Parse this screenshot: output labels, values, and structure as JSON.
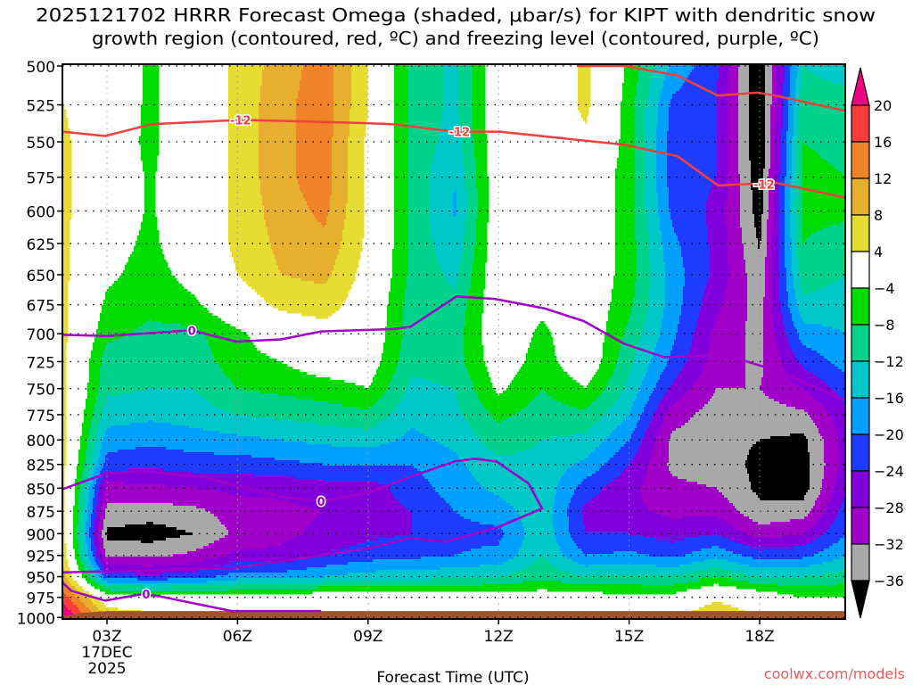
{
  "chart_data": {
    "type": "heatmap",
    "title_lines": [
      "2025121702 HRRR Forecast Omega (shaded, μbar/s) for KIPT with dendritic snow",
      "growth region (contoured, red, ºC) and freezing level (contoured, purple, ºC)"
    ],
    "xlabel": "Forecast Time (UTC)",
    "x_unit": "hours since 00Z 17DEC2025",
    "xlim": [
      2,
      20
    ],
    "x_ticks": [
      {
        "t": 3,
        "label": "03Z",
        "sub": [
          "17DEC",
          "2025"
        ]
      },
      {
        "t": 6,
        "label": "06Z"
      },
      {
        "t": 9,
        "label": "09Z"
      },
      {
        "t": 12,
        "label": "12Z"
      },
      {
        "t": 15,
        "label": "15Z"
      },
      {
        "t": 18,
        "label": "18Z"
      }
    ],
    "ylabel": "Pressure (hPa)",
    "ylim": [
      500,
      1000
    ],
    "y_scale": "log",
    "y_ticks": [
      "500",
      "525",
      "550",
      "575",
      "600",
      "625",
      "650",
      "675",
      "700",
      "725",
      "750",
      "775",
      "800",
      "825",
      "850",
      "875",
      "900",
      "925",
      "950",
      "975",
      "1000"
    ],
    "grid": true,
    "omega_times": [
      2,
      3,
      4,
      5,
      6,
      7,
      8,
      9,
      10,
      11,
      12,
      13,
      14,
      15,
      16,
      17,
      18,
      19,
      20
    ],
    "omega_pressures": [
      500,
      525,
      550,
      575,
      600,
      625,
      650,
      675,
      700,
      725,
      750,
      775,
      800,
      825,
      850,
      875,
      900,
      925,
      950,
      975,
      1000
    ],
    "omega_by_time": [
      [
        2,
        4,
        5,
        5,
        5,
        5,
        5,
        5,
        5,
        5,
        5,
        5,
        5,
        5,
        5,
        5,
        5,
        6,
        10,
        18,
        25
      ],
      [
        0,
        0,
        -1,
        -1,
        -1,
        -2,
        -3,
        -5,
        -7,
        -10,
        -11,
        -14,
        -18,
        -22,
        -30,
        -33,
        -37,
        -33,
        -22,
        0,
        8
      ],
      [
        -5,
        -5,
        -5,
        -4.5,
        -4.5,
        -5,
        -6,
        -7,
        -9,
        -11,
        -12,
        -15,
        -19,
        -23,
        -29,
        -34,
        -38,
        -33,
        -23,
        -2,
        6
      ],
      [
        0,
        0,
        0,
        0,
        0,
        0,
        -2,
        -5,
        -9,
        -10,
        -12,
        -14,
        -18,
        -22,
        -28,
        -33,
        -36,
        -31,
        -22,
        -2,
        6
      ],
      [
        5,
        5,
        5,
        5,
        5,
        5,
        4,
        1,
        -5,
        -6,
        -8,
        -12,
        -17,
        -22,
        -27,
        -30,
        -31,
        -27,
        -18,
        -2,
        5
      ],
      [
        10,
        11,
        11,
        11,
        10,
        9,
        8,
        5,
        0,
        -4,
        -7,
        -11,
        -16,
        -21,
        -27,
        -29,
        -29,
        -27,
        -18,
        -1,
        5
      ],
      [
        14,
        14,
        14,
        14,
        13,
        11,
        9,
        6,
        2,
        -1,
        -6,
        -10,
        -15,
        -20,
        -26,
        -28,
        -27,
        -24,
        -16,
        0,
        5
      ],
      [
        4,
        4,
        3,
        3,
        3,
        3,
        2,
        1,
        0,
        -1,
        -4,
        -9,
        -14,
        -20,
        -26,
        -26,
        -25,
        -22,
        -14,
        0,
        4
      ],
      [
        -9,
        -9,
        -9,
        -9,
        -9,
        -9,
        -9,
        -10,
        -10,
        -11,
        -13,
        -15,
        -17,
        -20,
        -22,
        -24,
        -24,
        -21,
        -14,
        -1,
        4
      ],
      [
        -13,
        -13,
        -14,
        -16,
        -16.5,
        -15,
        -13,
        -11,
        -10,
        -10,
        -12,
        -13,
        -15,
        -17,
        -18,
        -20,
        -21,
        -20,
        -13,
        -1,
        4
      ],
      [
        0,
        0,
        0,
        0,
        0,
        0,
        0,
        0,
        0,
        -1,
        -3,
        -7,
        -10,
        -13,
        -15,
        -18,
        -21,
        -19,
        -12,
        -1,
        2
      ],
      [
        0,
        0,
        0,
        0,
        0,
        0,
        0,
        -3,
        -5,
        -6,
        -8,
        -10,
        -12,
        -13,
        -13,
        -13,
        -13,
        -12,
        -9,
        -1,
        2
      ],
      [
        5,
        5,
        3,
        0,
        0,
        0,
        0,
        0,
        0,
        0,
        -4,
        -9,
        -13,
        -17,
        -22,
        -25,
        -24,
        -20,
        -12,
        -1,
        2
      ],
      [
        -5,
        -6,
        -6,
        -6,
        -6,
        -6,
        -6,
        -7,
        -9,
        -11,
        -13,
        -16,
        -20,
        -24,
        -27,
        -27,
        -24,
        -19,
        -11,
        -3,
        2
      ],
      [
        -17,
        -21,
        -22,
        -22,
        -21,
        -19,
        -18,
        -18,
        -19,
        -21,
        -25,
        -30,
        -33,
        -33,
        -31,
        -29,
        -26,
        -21,
        -12,
        -2,
        4
      ],
      [
        -23,
        -24,
        -24,
        -24,
        -25,
        -25,
        -25,
        -27,
        -29,
        -30,
        -32,
        -34,
        -35,
        -34,
        -32,
        -29,
        -24,
        -17,
        -8,
        3,
        8
      ],
      [
        -40,
        -40,
        -40,
        -39,
        -38,
        -36.5,
        -35,
        -34,
        -33.5,
        -33,
        -32,
        -34,
        -36,
        -37,
        -37,
        -35,
        -30,
        -22,
        -12,
        0,
        4
      ],
      [
        -12,
        -10,
        -8,
        -7,
        -7,
        -8,
        -10,
        -13,
        -18,
        -23,
        -28,
        -33,
        -37,
        -38,
        -38,
        -34,
        -28,
        -21,
        -12,
        -4,
        0
      ],
      [
        -14,
        -10,
        -9,
        -8,
        -7,
        -10,
        -12,
        -14,
        -16,
        -18,
        -22,
        -25,
        -26,
        -26,
        -24,
        -22,
        -20,
        -16,
        -10,
        -4,
        0
      ]
    ],
    "colorbar": {
      "labels": [
        "20",
        "16",
        "12",
        "8",
        "4",
        "-4",
        "-8",
        "-12",
        "-16",
        "-20",
        "-24",
        "-28",
        "-32",
        "-36"
      ],
      "bounds": [
        -36,
        -32,
        -28,
        -24,
        -20,
        -16,
        -12,
        -8,
        -4,
        4,
        8,
        12,
        16,
        20
      ],
      "colors": [
        "#000000",
        "#a8a8a8",
        "#a000c8",
        "#8200dc",
        "#1e3cff",
        "#00a0ff",
        "#00c8c8",
        "#00d28c",
        "#00dc00",
        "#ffffff",
        "#e6dc32",
        "#e6af2d",
        "#f08228",
        "#fa3c3c",
        "#f00082"
      ]
    },
    "surface": {
      "color": "#a0522d",
      "times": [
        2,
        2.5,
        3,
        20
      ],
      "pressures": [
        998,
        994,
        992,
        992
      ]
    },
    "contours": [
      {
        "name": "dgz-minus12-lower",
        "value": "-12",
        "color": "#f04040",
        "points": [
          [
            1.98,
            543
          ],
          [
            2.96,
            546
          ],
          [
            4.02,
            538
          ],
          [
            6.07,
            535
          ],
          [
            8.74,
            537
          ],
          [
            9.56,
            538
          ],
          [
            10.99,
            543
          ],
          [
            12.02,
            543
          ],
          [
            14.89,
            552
          ],
          [
            16.11,
            560
          ],
          [
            17.04,
            581
          ],
          [
            18.37,
            579
          ],
          [
            19.97,
            590
          ]
        ],
        "labels_at": [
          [
            6.07,
            535
          ],
          [
            11.1,
            543
          ],
          [
            18.1,
            580
          ]
        ]
      },
      {
        "name": "dgz-minus12-upper",
        "value": "-12",
        "color": "#f04040",
        "points": [
          [
            13.8,
            500
          ],
          [
            14.89,
            500
          ],
          [
            16.11,
            506
          ],
          [
            17.04,
            519
          ],
          [
            17.96,
            517
          ],
          [
            18.37,
            519
          ],
          [
            19.97,
            529
          ]
        ],
        "labels_at": []
      },
      {
        "name": "freezing-level-upper",
        "value": "0",
        "color": "#a000c8",
        "points": [
          [
            1.98,
            701
          ],
          [
            3.0,
            702
          ],
          [
            4.95,
            697
          ],
          [
            5.97,
            707
          ],
          [
            7.0,
            705
          ],
          [
            7.92,
            698
          ],
          [
            9.56,
            696
          ],
          [
            9.97,
            694
          ],
          [
            11.03,
            668
          ],
          [
            11.91,
            670
          ],
          [
            13.04,
            678
          ],
          [
            13.96,
            689
          ],
          [
            14.89,
            709
          ],
          [
            15.81,
            721
          ],
          [
            16.93,
            719
          ],
          [
            17.55,
            723
          ],
          [
            18.37,
            733
          ],
          [
            19.97,
            761
          ]
        ],
        "labels_at": [
          [
            4.95,
            697
          ]
        ]
      },
      {
        "name": "freezing-level-middle",
        "value": "0",
        "color": "#a000c8",
        "points": [
          [
            1.98,
            851
          ],
          [
            3,
            834
          ],
          [
            3.82,
            832
          ],
          [
            5.19,
            838
          ],
          [
            7.1,
            860
          ],
          [
            7.92,
            864
          ],
          [
            9.0,
            855
          ],
          [
            9.97,
            838
          ],
          [
            10.99,
            822
          ],
          [
            11.46,
            819
          ],
          [
            11.95,
            822
          ],
          [
            12.69,
            845
          ],
          [
            13.0,
            872
          ],
          [
            12.02,
            892
          ],
          [
            11.46,
            900
          ],
          [
            10.79,
            909
          ],
          [
            9.97,
            905
          ],
          [
            9.0,
            917
          ],
          [
            5.87,
            940
          ],
          [
            1.98,
            945
          ]
        ],
        "labels_at": [
          [
            7.92,
            864
          ]
        ]
      },
      {
        "name": "freezing-level-lower",
        "value": "0",
        "color": "#a000c8",
        "points": [
          [
            1.98,
            957
          ],
          [
            2.18,
            967
          ],
          [
            2.96,
            979
          ],
          [
            3.82,
            971
          ],
          [
            4.23,
            974
          ],
          [
            5.87,
            992
          ],
          [
            7.92,
            992
          ]
        ],
        "labels_at": [
          [
            3.9,
            971
          ]
        ]
      }
    ],
    "credit": "coolwx.com/models"
  }
}
